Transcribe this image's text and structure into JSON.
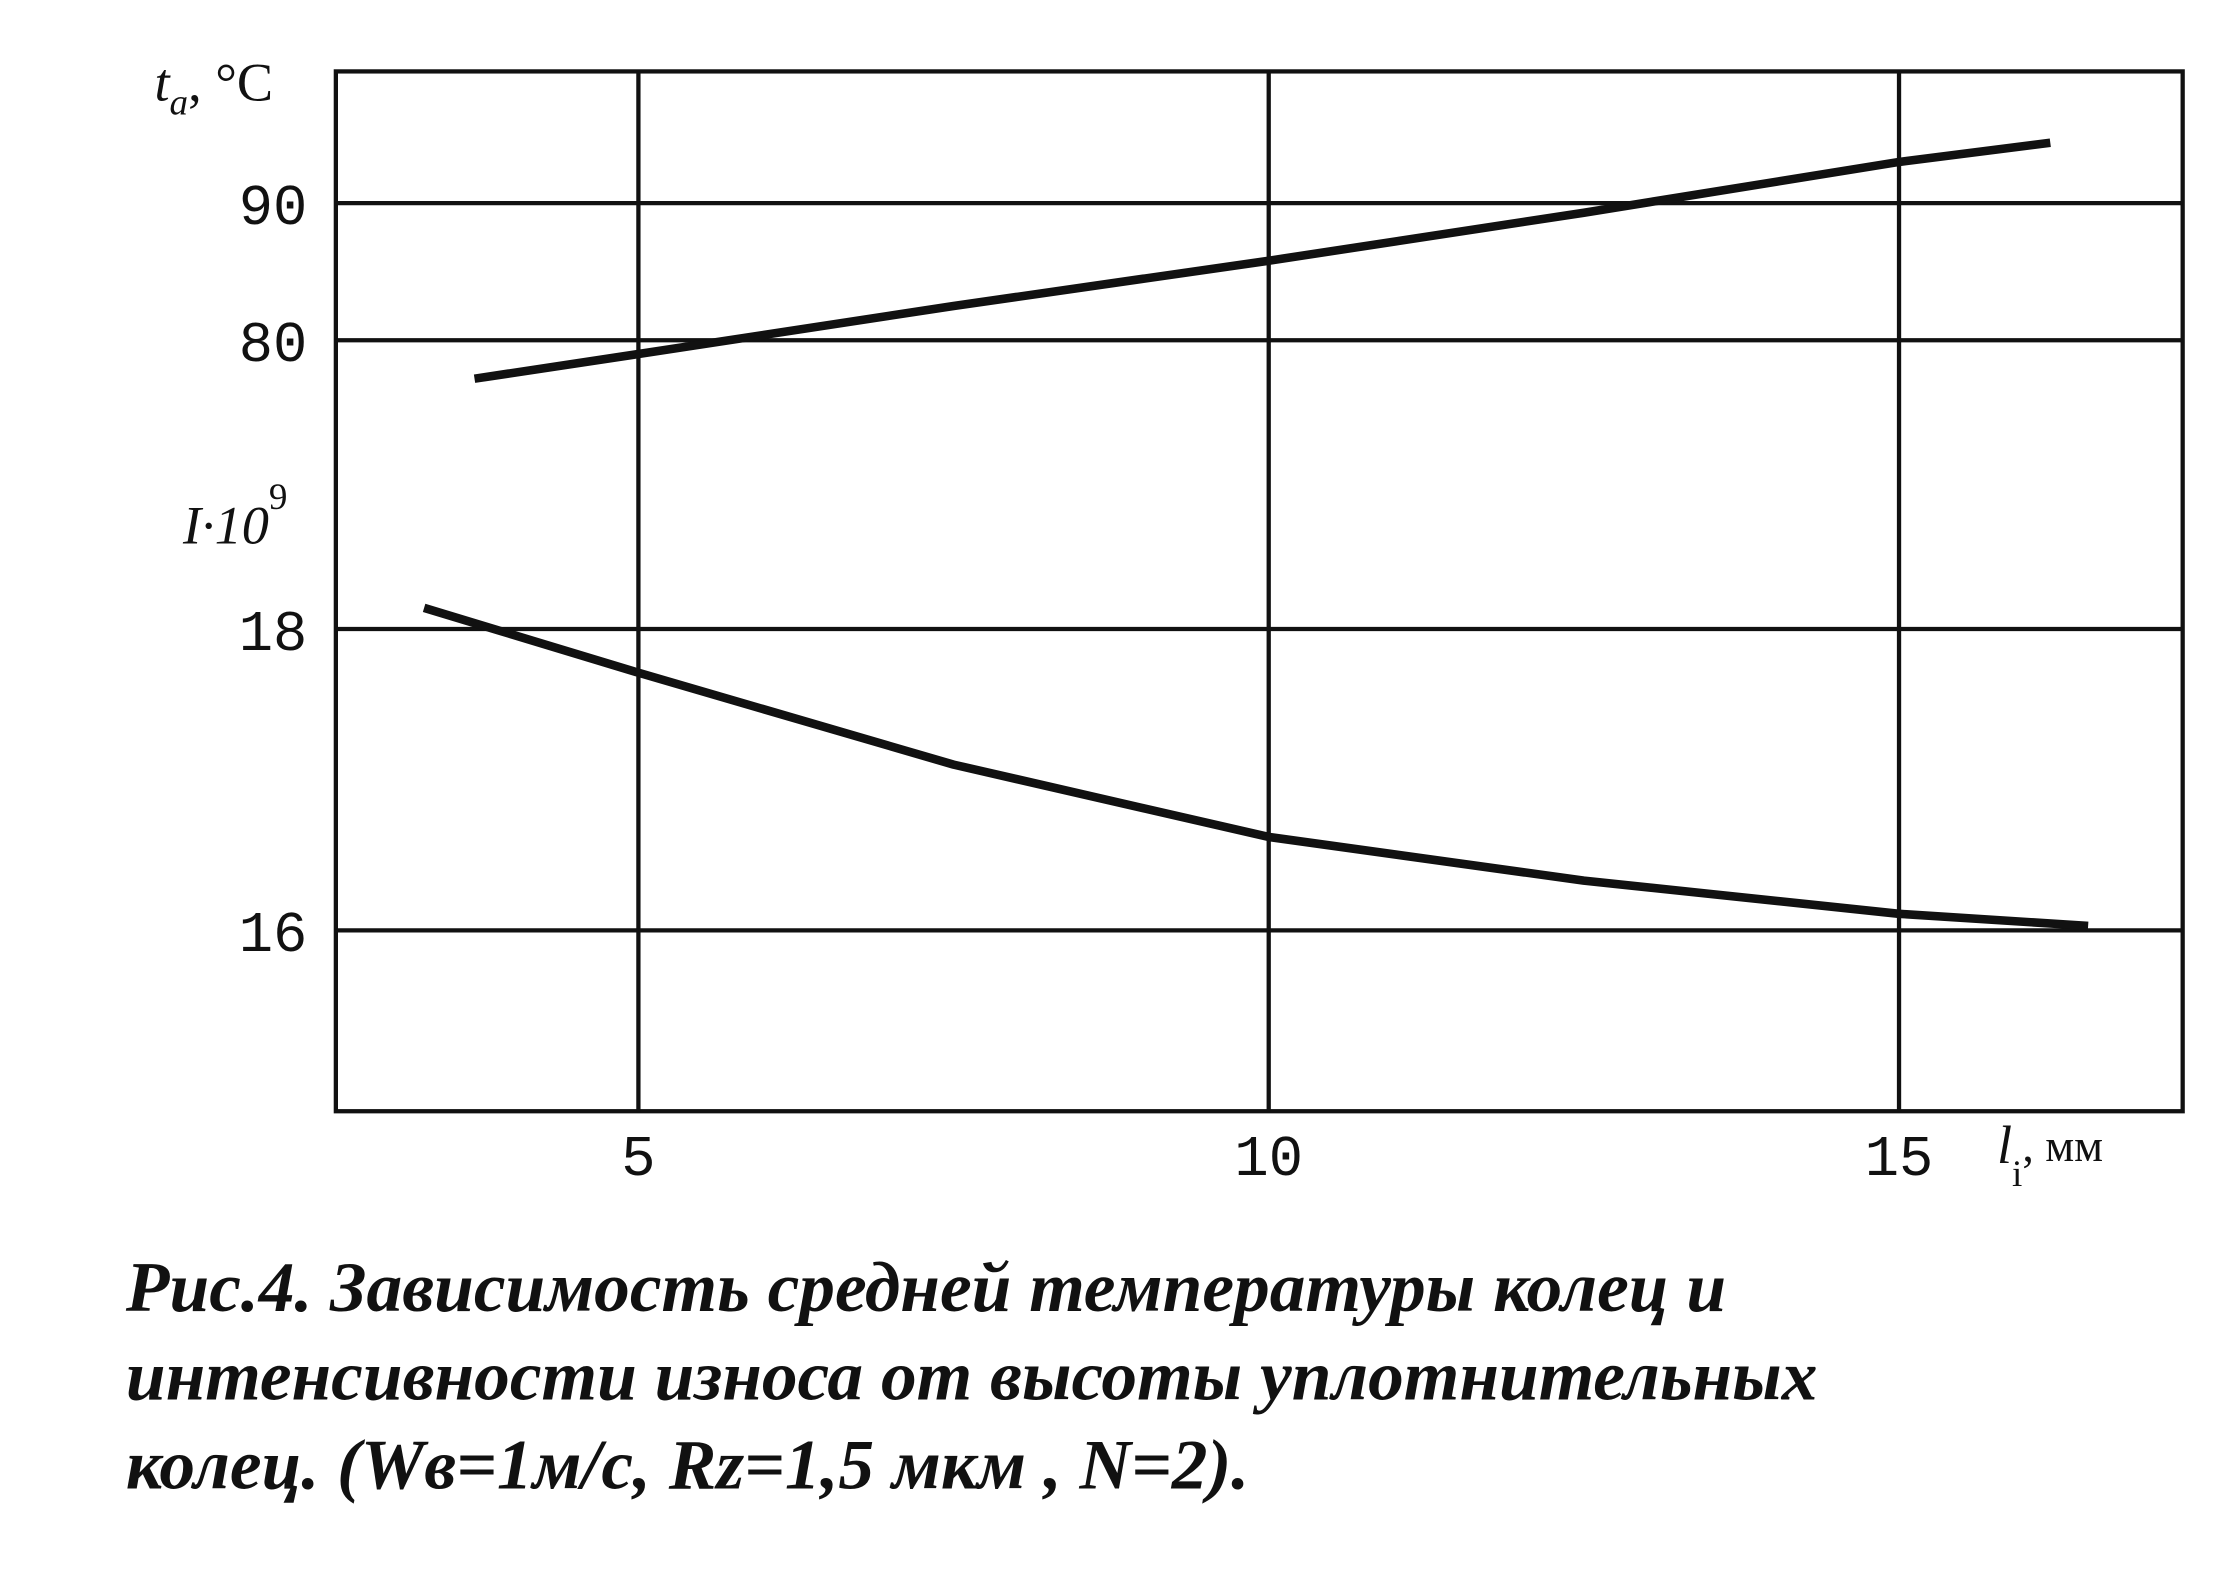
{
  "chart_data": {
    "type": "line",
    "y_label": {
      "symbol": "t",
      "subscript": "a",
      "unit": ", °C"
    },
    "y2_label": {
      "symbol": "I·10",
      "superscript": "9"
    },
    "x_label": {
      "symbol": "l",
      "subscript": "i",
      "unit": ", мм"
    },
    "x": [
      3.7,
      5,
      7.5,
      10,
      12.5,
      15,
      16.2
    ],
    "series": [
      {
        "name": "t_a",
        "color": "#111111",
        "axis": "y",
        "x": [
          3.7,
          5,
          7.5,
          10,
          12.5,
          15,
          16.2
        ],
        "values": [
          77.2,
          79.0,
          82.5,
          85.8,
          89.3,
          93.0,
          94.4
        ]
      },
      {
        "name": "I",
        "color": "#111111",
        "axis": "y2",
        "x": [
          3.3,
          5,
          7.5,
          10,
          12.5,
          15,
          16.5
        ],
        "values": [
          18.14,
          17.71,
          17.1,
          16.62,
          16.33,
          16.11,
          16.03
        ]
      }
    ],
    "xlim": [
      2.6,
      17.25
    ],
    "xticks": [
      5,
      10,
      15
    ],
    "ylim": [
      23.8,
      99.6
    ],
    "yticks": [
      80,
      90
    ],
    "y2lim": [
      14.8,
      21.7
    ],
    "y2ticks": [
      16,
      18
    ],
    "grid": true,
    "caption": [
      "Рис.4. Зависимость средней температуры колец и",
      "интенсивности износа от высоты уплотнительных",
      "колец. (Wв=1м/с, Rz=1,5 мкм , N=2)."
    ]
  }
}
